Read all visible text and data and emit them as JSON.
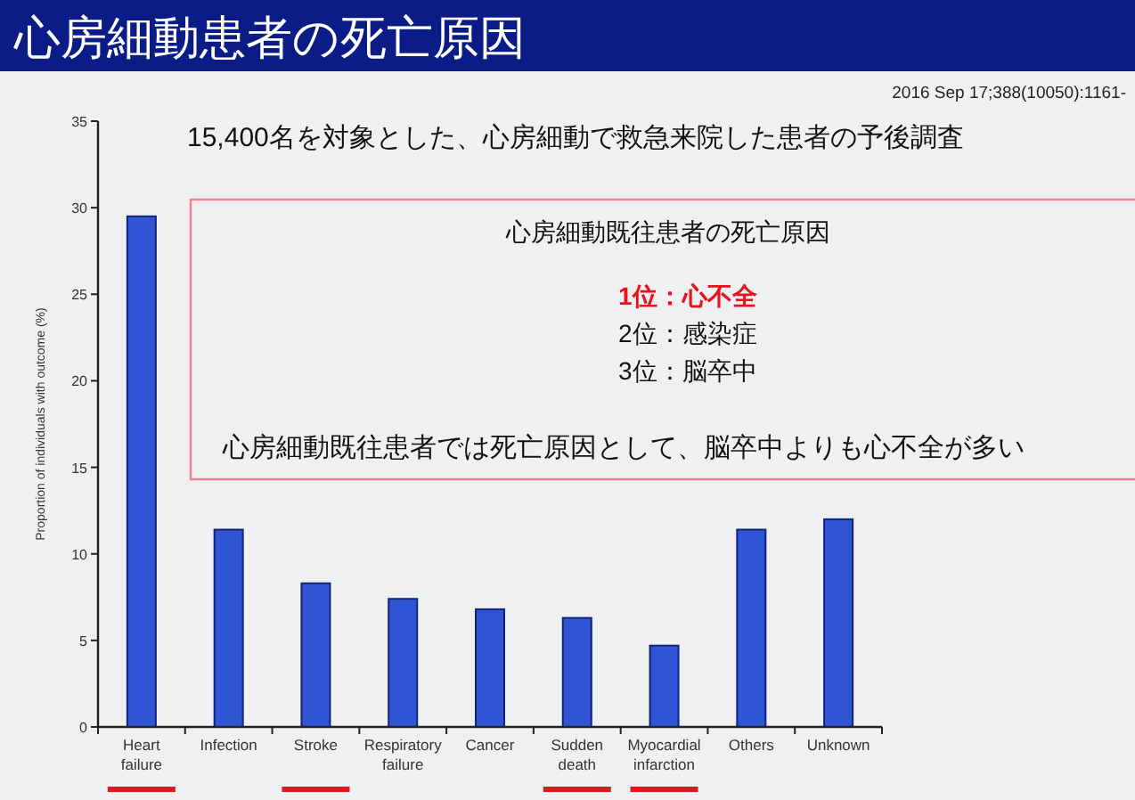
{
  "chart_data": {
    "type": "bar",
    "title": "心房細動患者の死亡原因",
    "categories": [
      "Heart\nfailure",
      "Infection",
      "Stroke",
      "Respiratory\nfailure",
      "Cancer",
      "Sudden\ndeath",
      "Myocardial\ninfarction",
      "Others",
      "Unknown"
    ],
    "values": [
      29.5,
      11.4,
      8.3,
      7.4,
      6.8,
      6.3,
      4.7,
      11.4,
      12.0
    ],
    "color": "#2f55d4",
    "ylabel": "Proportion of individuals with outcome (%)",
    "ylim": [
      0,
      35
    ],
    "yticks": [
      0,
      5,
      10,
      15,
      20,
      25,
      30,
      35
    ],
    "grid": false,
    "annotations": [
      "2016 Sep 17;388(10050):1161-",
      "15,400名を対象とした、心房細動で救急来院した患者の予後調査",
      "心房細動既往患者の死亡原因",
      "1位：心不全",
      "2位：感染症",
      "3位：脳卒中",
      "心房細動既往患者では死亡原因として、脳卒中よりも心不全が多い"
    ]
  }
}
